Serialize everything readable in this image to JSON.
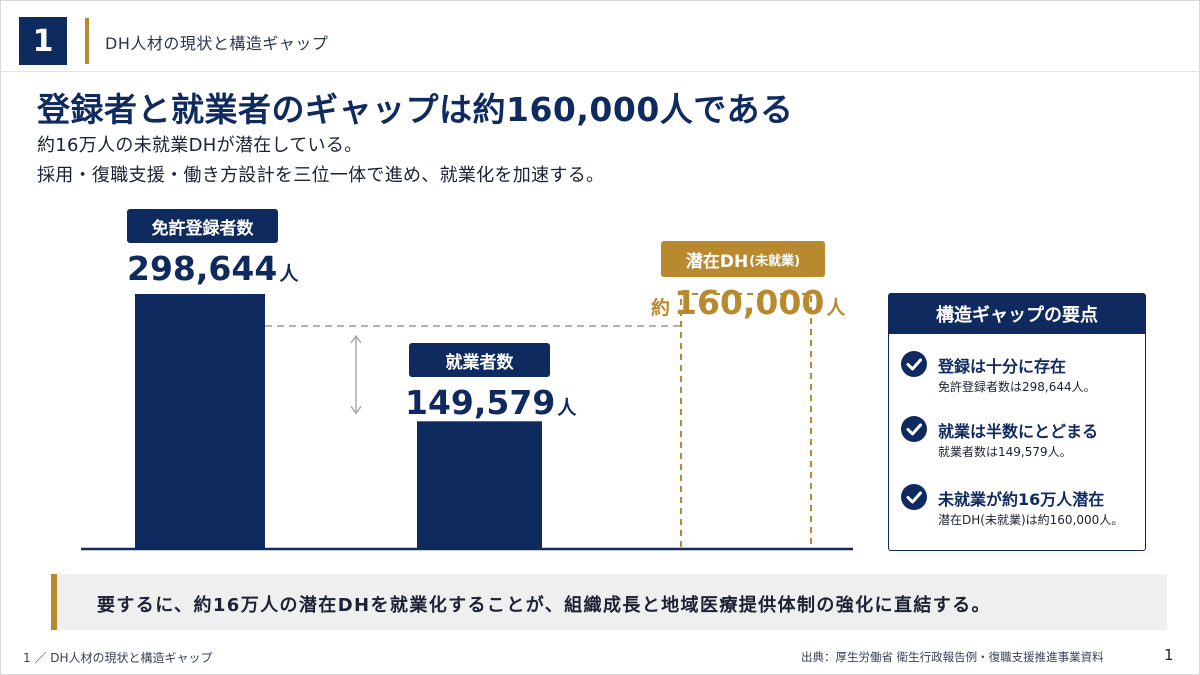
{
  "header": {
    "section_number": "1",
    "section_label": "DH人材の現状と構造ギャップ"
  },
  "title": "登録者と就業者のギャップは約160,000人である",
  "subtitle_lines": [
    "約16万人の未就業DHが潜在している。",
    "採用・復職支援・働き方設計を三位一体で進め、就業化を加速する。"
  ],
  "chart_data": {
    "type": "bar",
    "categories": [
      "免許登録者数",
      "就業者数",
      "潜在DH（未就業）"
    ],
    "values": [
      298644,
      149579,
      160000
    ],
    "value_labels": [
      "298,644",
      "149,579",
      "160,000"
    ],
    "value_prefix": [
      "",
      "",
      "約"
    ],
    "unit": "人",
    "styles": [
      "solid",
      "solid",
      "dashed-outline"
    ],
    "colors": [
      "#0f2a5e",
      "#0f2a5e",
      "#b8892f"
    ],
    "ylim": [
      0,
      298644
    ],
    "gap_line": "dashed line from top of 免許登録者数 bar to 潜在DH box, with double arrow indicating gap",
    "title": "",
    "xlabel": "",
    "ylabel": ""
  },
  "labels": {
    "bar1_badge": "免許登録者数",
    "bar2_badge": "就業者数",
    "bar3_badge_main": "潜在DH",
    "bar3_badge_sub": "(未就業)"
  },
  "panel": {
    "title": "構造ギャップの要点",
    "points": [
      {
        "title": "登録は十分に存在",
        "desc": "免許登録者数は298,644人。"
      },
      {
        "title": "就業は半数にとどまる",
        "desc": "就業者数は149,579人。"
      },
      {
        "title": "未就業が約16万人潜在",
        "desc": "潜在DH(未就業)は約160,000人。"
      }
    ]
  },
  "conclusion": "要するに、約16万人の潜在DHを就業化することが、組織成長と地域医療提供体制の強化に直結する。",
  "footer": {
    "breadcrumb": "1 ／ DH人材の現状と構造ギャップ",
    "source": "出典：厚生労働省 衛生行政報告例・復職支援推進事業資料",
    "page": "1"
  },
  "colors": {
    "navy": "#0f2a5e",
    "gold": "#b8892f",
    "panel_bg": "#efefef"
  }
}
